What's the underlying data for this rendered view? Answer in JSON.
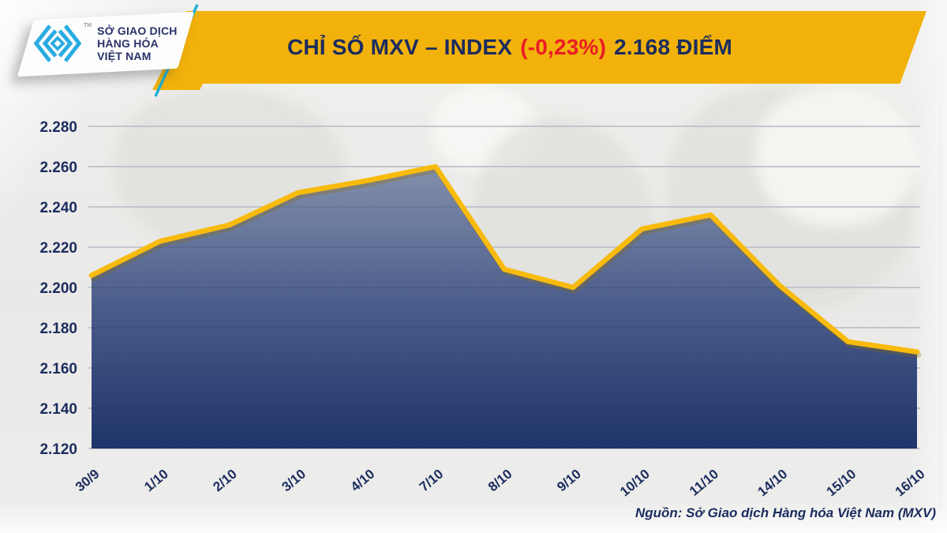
{
  "header": {
    "title_main": "CHỈ SỐ MXV – INDEX",
    "title_change": "(-0,23%)",
    "title_points": "2.168 ĐIỂM"
  },
  "logo": {
    "org_lines": [
      "SỞ GIAO DỊCH",
      "HÀNG HÓA",
      "VIỆT NAM"
    ],
    "trademark": "TM"
  },
  "source": {
    "label": "Nguồn: Sở Giao dịch Hàng hóa Việt Nam (MXV)"
  },
  "colors": {
    "banner_gold": "#F2B20B",
    "line_gold": "#F8BB0D",
    "line_shadow": "#8a6a05",
    "fill_top": "#8390AB",
    "fill_mid": "#4A5C8B",
    "fill_bottom": "#1F346A",
    "navy": "#1B2C5E",
    "red": "#EA1C24",
    "grid": "#CDD0D5",
    "logo_cyan": "#29ABE2",
    "teal_stripe": "#1FAFD4"
  },
  "chart_data": {
    "type": "area",
    "title": "Chỉ số MXV-Index",
    "x": [
      "30/9",
      "1/10",
      "2/10",
      "3/10",
      "4/10",
      "7/10",
      "8/10",
      "9/10",
      "10/10",
      "11/10",
      "14/10",
      "15/10",
      "16/10"
    ],
    "values": [
      2.206,
      2.223,
      2.231,
      2.247,
      2.253,
      2.26,
      2.209,
      2.2,
      2.229,
      2.236,
      2.201,
      2.173,
      2.168
    ],
    "ylim": [
      2.12,
      2.28
    ],
    "ytick_step": 0.02,
    "ytick_labels": [
      "2.120",
      "2.140",
      "2.160",
      "2.180",
      "2.200",
      "2.220",
      "2.240",
      "2.260",
      "2.280"
    ],
    "grid": "horizontal",
    "legend": "none",
    "last_value_label": "2.168",
    "change_percent": "-0,23%"
  }
}
